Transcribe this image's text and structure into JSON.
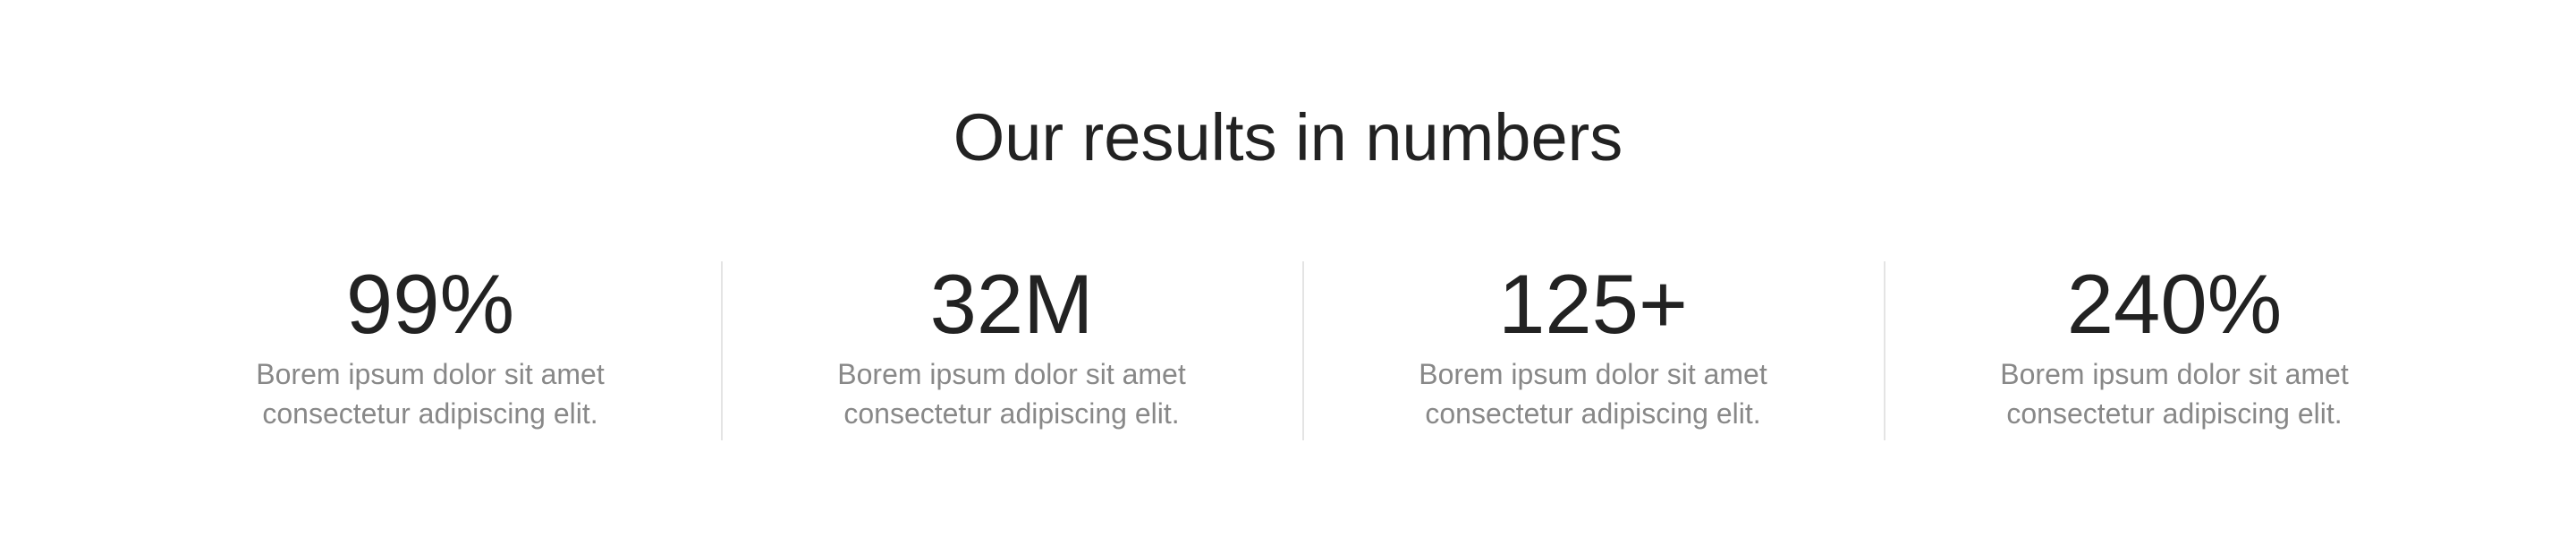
{
  "section": {
    "title": "Our results in numbers"
  },
  "stats": [
    {
      "value": "99%",
      "description": "Borem ipsum dolor sit amet consectetur adipiscing elit."
    },
    {
      "value": "32M",
      "description": "Borem ipsum dolor sit amet consectetur adipiscing elit."
    },
    {
      "value": "125+",
      "description": "Borem ipsum dolor sit amet consectetur adipiscing elit."
    },
    {
      "value": "240%",
      "description": "Borem ipsum dolor sit amet consectetur adipiscing elit."
    }
  ],
  "colors": {
    "heading": "#222222",
    "description": "#888888",
    "divider": "#e4e4e4",
    "background": "#ffffff"
  }
}
